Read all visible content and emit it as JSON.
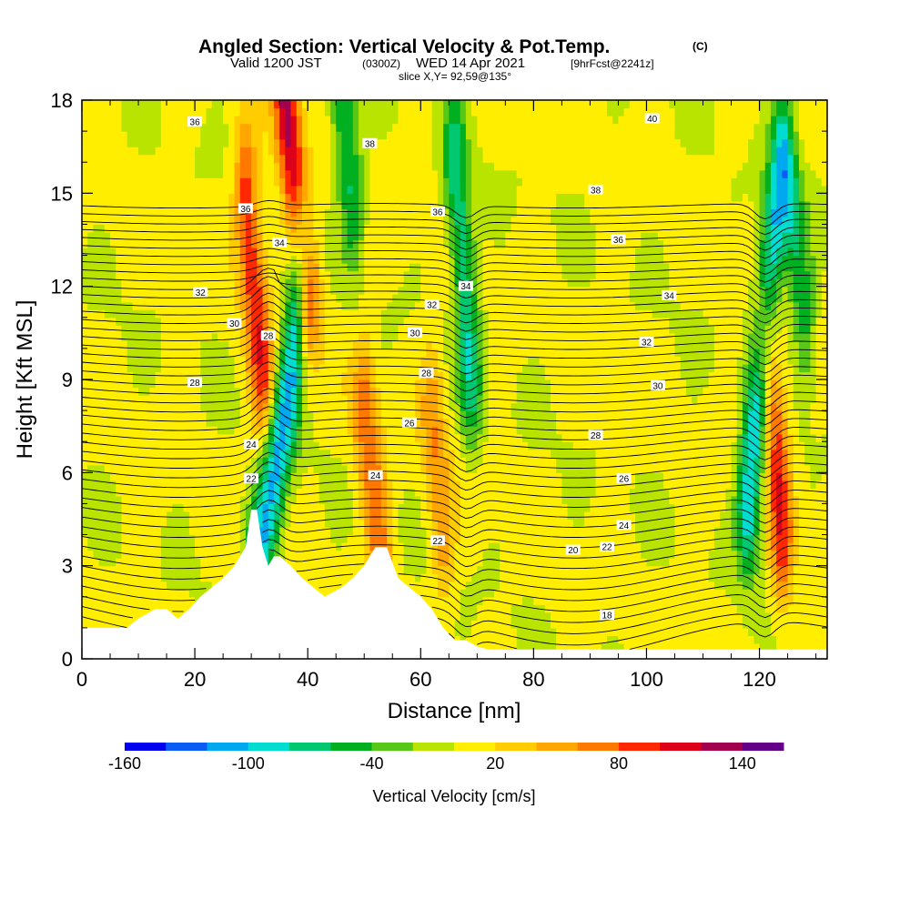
{
  "header": {
    "title_main": "Angled Section: Vertical Velocity & Pot.Temp.",
    "title_tag": "(C)",
    "valid_a": "Valid 1200 JST",
    "valid_b": "(0300Z)",
    "valid_c": "WED 14 Apr 2021",
    "valid_d": "[9hrFcst@2241z]",
    "slice": "slice X,Y= 92,59@135°"
  },
  "chart_data": {
    "type": "heatmap",
    "xlabel": "Distance [nm]",
    "ylabel": "Height [Kft MSL]",
    "xlim": [
      0,
      132
    ],
    "ylim": [
      0,
      18
    ],
    "x_ticks": [
      0,
      20,
      40,
      60,
      80,
      100,
      120
    ],
    "y_ticks": [
      0,
      3,
      6,
      9,
      12,
      15,
      18
    ],
    "colorbar": {
      "title": "Vertical Velocity [cm/s]",
      "min": -160,
      "max": 160,
      "step": 20,
      "tick_labels": [
        "-160",
        "-100",
        "-40",
        "20",
        "80",
        "140"
      ],
      "tick_values": [
        -160,
        -100,
        -40,
        20,
        80,
        140
      ],
      "colors": [
        "#0000ee",
        "#0a5cf5",
        "#00a8f0",
        "#00ddd0",
        "#00c870",
        "#00b020",
        "#58c818",
        "#b8e400",
        "#ffee00",
        "#ffcc00",
        "#ffa600",
        "#ff7800",
        "#ff2800",
        "#dc0018",
        "#a40050",
        "#640088"
      ]
    },
    "terrain_profile": {
      "x": [
        0,
        8,
        10,
        13,
        15,
        17,
        19,
        21,
        23,
        25,
        27,
        29,
        30,
        31,
        32,
        33,
        34,
        35,
        37,
        39,
        41,
        43,
        46,
        48,
        50,
        52,
        54,
        56,
        58,
        60,
        62,
        64,
        66,
        68,
        70,
        72,
        132
      ],
      "height": [
        1.0,
        1.0,
        1.3,
        1.6,
        1.6,
        1.3,
        1.6,
        2.0,
        2.3,
        2.6,
        3.0,
        3.6,
        4.8,
        4.8,
        3.6,
        3.0,
        3.3,
        3.3,
        3.0,
        2.6,
        2.3,
        2.0,
        2.3,
        2.6,
        3.0,
        3.6,
        3.6,
        2.6,
        2.3,
        2.0,
        1.6,
        1.0,
        0.6,
        0.6,
        0.4,
        0.3,
        0.3
      ]
    },
    "features": [
      {
        "kind": "updraft",
        "x": [
          36,
          38,
          40
        ],
        "z": [
          18,
          15,
          12
        ],
        "w": 120
      },
      {
        "kind": "updraft",
        "x": [
          29,
          31,
          32
        ],
        "z": [
          15,
          11,
          9
        ],
        "w": 90
      },
      {
        "kind": "updraft",
        "x": [
          121,
          123,
          124
        ],
        "z": [
          10,
          7,
          4
        ],
        "w": 90
      },
      {
        "kind": "updraft",
        "x": [
          50,
          52,
          53
        ],
        "z": [
          8,
          5,
          3
        ],
        "w": 70
      },
      {
        "kind": "updraft",
        "x": [
          62,
          63,
          64
        ],
        "z": [
          8,
          6,
          4
        ],
        "w": 50
      },
      {
        "kind": "downdraft",
        "x": [
          31,
          34,
          37,
          39
        ],
        "z": [
          3,
          6,
          9,
          13
        ],
        "w": -110
      },
      {
        "kind": "downdraft",
        "x": [
          46,
          48
        ],
        "z": [
          18,
          15
        ],
        "w": -70
      },
      {
        "kind": "downdraft",
        "x": [
          66,
          68,
          69
        ],
        "z": [
          16,
          12,
          9
        ],
        "w": -80
      },
      {
        "kind": "downdraft",
        "x": [
          118,
          120,
          122,
          124
        ],
        "z": [
          5,
          9,
          13,
          16
        ],
        "w": -110
      },
      {
        "kind": "downdraft",
        "x": [
          126,
          128
        ],
        "z": [
          14,
          11
        ],
        "w": -60
      }
    ],
    "isentropes": {
      "levels": [
        18,
        20,
        22,
        24,
        26,
        28,
        30,
        32,
        34,
        36,
        38,
        40
      ],
      "labels": [
        {
          "text": "36",
          "x": 20,
          "z": 17.3
        },
        {
          "text": "36",
          "x": 29,
          "z": 14.5
        },
        {
          "text": "34",
          "x": 35,
          "z": 13.4
        },
        {
          "text": "32",
          "x": 21,
          "z": 11.8
        },
        {
          "text": "30",
          "x": 27,
          "z": 10.8
        },
        {
          "text": "28",
          "x": 33,
          "z": 10.4
        },
        {
          "text": "28",
          "x": 20,
          "z": 8.9
        },
        {
          "text": "24",
          "x": 30,
          "z": 6.9
        },
        {
          "text": "22",
          "x": 30,
          "z": 5.8
        },
        {
          "text": "38",
          "x": 51,
          "z": 16.6
        },
        {
          "text": "36",
          "x": 63,
          "z": 14.4
        },
        {
          "text": "34",
          "x": 68,
          "z": 12.0
        },
        {
          "text": "32",
          "x": 62,
          "z": 11.4
        },
        {
          "text": "30",
          "x": 59,
          "z": 10.5
        },
        {
          "text": "28",
          "x": 61,
          "z": 9.2
        },
        {
          "text": "26",
          "x": 58,
          "z": 7.6
        },
        {
          "text": "24",
          "x": 52,
          "z": 5.9
        },
        {
          "text": "22",
          "x": 63,
          "z": 3.8
        },
        {
          "text": "40",
          "x": 101,
          "z": 17.4
        },
        {
          "text": "38",
          "x": 91,
          "z": 15.1
        },
        {
          "text": "36",
          "x": 95,
          "z": 13.5
        },
        {
          "text": "34",
          "x": 104,
          "z": 11.7
        },
        {
          "text": "32",
          "x": 100,
          "z": 10.2
        },
        {
          "text": "30",
          "x": 102,
          "z": 8.8
        },
        {
          "text": "28",
          "x": 91,
          "z": 7.2
        },
        {
          "text": "26",
          "x": 96,
          "z": 5.8
        },
        {
          "text": "24",
          "x": 96,
          "z": 4.3
        },
        {
          "text": "22",
          "x": 93,
          "z": 3.6
        },
        {
          "text": "20",
          "x": 87,
          "z": 3.5
        },
        {
          "text": "18",
          "x": 93,
          "z": 1.4
        }
      ]
    }
  }
}
